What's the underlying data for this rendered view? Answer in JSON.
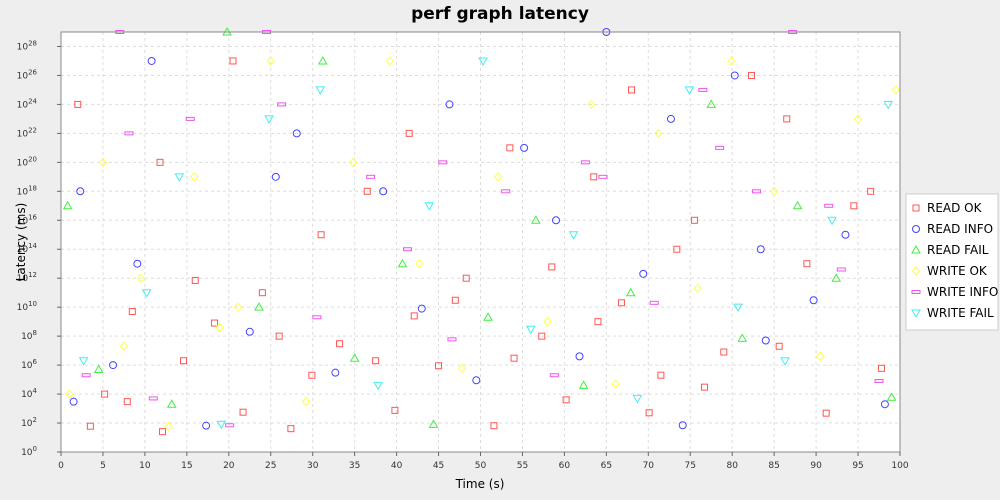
{
  "chart_data": {
    "type": "scatter",
    "title": "perf graph latency",
    "xlabel": "Time (s)",
    "ylabel": "Latency (ms)",
    "x_scale": "linear",
    "y_scale": "log",
    "xlim": [
      0,
      100
    ],
    "ylim": [
      1,
      1e+29
    ],
    "x_ticks": [
      "0",
      "5",
      "10",
      "15",
      "20",
      "25",
      "30",
      "35",
      "40",
      "45",
      "50",
      "55",
      "60",
      "65",
      "70",
      "75",
      "80",
      "85",
      "90",
      "95",
      "100"
    ],
    "y_tick_exponents": [
      "0",
      "2",
      "4",
      "6",
      "8",
      "10",
      "12",
      "14",
      "16",
      "18",
      "20",
      "22",
      "24",
      "26",
      "28"
    ],
    "y_tick_base": "10",
    "grid": true,
    "legend_position": "right",
    "series": [
      {
        "name": "READ OK",
        "marker": "square",
        "color": "#ff5555",
        "points": [
          [
            3.5,
            60.2
          ],
          [
            5.2,
            10000.0
          ],
          [
            7.9,
            3000.0
          ],
          [
            12.1,
            25.4
          ],
          [
            14.6,
            2000000.0
          ],
          [
            18.3,
            800000000.0
          ],
          [
            21.7,
            560.0
          ],
          [
            24.0,
            100000000000.0
          ],
          [
            27.4,
            40.8
          ],
          [
            29.9,
            200000.0
          ],
          [
            33.2,
            30000000.0
          ],
          [
            36.5,
            1e+18
          ],
          [
            39.8,
            750.0
          ],
          [
            42.1,
            2500000000.0
          ],
          [
            45.0,
            900000.0
          ],
          [
            48.3,
            1000000000000.0
          ],
          [
            51.6,
            65.5
          ],
          [
            54.0,
            3000000.0
          ],
          [
            57.3,
            100000000.0
          ],
          [
            60.2,
            4000.0
          ],
          [
            63.5,
            1e+19
          ],
          [
            66.8,
            20000000000.0
          ],
          [
            70.1,
            510.0
          ],
          [
            73.4,
            100000000000000.0
          ],
          [
            76.7,
            30000.0
          ],
          [
            79.0,
            8000000.0
          ],
          [
            82.3,
            1e+26
          ],
          [
            85.6,
            20000000.0
          ],
          [
            88.9,
            10000000000000.0
          ],
          [
            91.2,
            480.0
          ],
          [
            94.5,
            1e+17
          ],
          [
            97.8,
            600000.0
          ],
          [
            2.0,
            1e+24
          ],
          [
            11.8,
            1e+20
          ],
          [
            20.5,
            1e+27
          ],
          [
            31.0,
            1000000000000000.0
          ],
          [
            41.5,
            1e+22
          ],
          [
            53.5,
            1e+21
          ],
          [
            68.0,
            1e+25
          ],
          [
            75.5,
            1e+16
          ],
          [
            86.5,
            1e+23
          ],
          [
            96.5,
            1e+18
          ],
          [
            8.5,
            5000000000.0
          ],
          [
            16.0,
            700000000000.0
          ],
          [
            26.0,
            100000000.0
          ],
          [
            37.5,
            2000000.0
          ],
          [
            47.0,
            30000000000.0
          ],
          [
            58.5,
            6000000000000.0
          ],
          [
            64.0,
            1000000000.0
          ],
          [
            71.5,
            200000.0
          ]
        ]
      },
      {
        "name": "READ INFO",
        "marker": "circle",
        "color": "#4444ff",
        "points": [
          [
            1.5,
            3000.0
          ],
          [
            6.2,
            1000000.0
          ],
          [
            10.8,
            1e+27
          ],
          [
            17.3,
            65.8
          ],
          [
            22.5,
            200000000.0
          ],
          [
            28.1,
            1e+22
          ],
          [
            32.7,
            300000.0
          ],
          [
            38.4,
            1e+18
          ],
          [
            43.0,
            8000000000.0
          ],
          [
            49.5,
            90000.0
          ],
          [
            55.2,
            1e+21
          ],
          [
            61.8,
            4000000.0
          ],
          [
            65.0,
            1e+29
          ],
          [
            69.4,
            2000000000000.0
          ],
          [
            74.1,
            70.2
          ],
          [
            80.3,
            1e+26
          ],
          [
            84.0,
            50000000.0
          ],
          [
            89.7,
            30000000000.0
          ],
          [
            93.5,
            1000000000000000.0
          ],
          [
            98.2,
            2000.0
          ],
          [
            2.3,
            1e+18
          ],
          [
            9.1,
            10000000000000.0
          ],
          [
            25.6,
            1e+19
          ],
          [
            46.3,
            1e+24
          ],
          [
            59.0,
            1e+16
          ],
          [
            72.7,
            1e+23
          ],
          [
            83.4,
            100000000000000.0
          ]
        ]
      },
      {
        "name": "READ FAIL",
        "marker": "triangle-up",
        "color": "#44ee44",
        "points": [
          [
            0.8,
            1e+17
          ],
          [
            4.5,
            500000.0
          ],
          [
            13.2,
            2000.0
          ],
          [
            19.8,
            1e+29
          ],
          [
            23.6,
            10000000000.0
          ],
          [
            31.2,
            1e+27
          ],
          [
            35.0,
            3000000.0
          ],
          [
            40.7,
            10000000000000.0
          ],
          [
            44.4,
            81.0
          ],
          [
            50.9,
            2000000000.0
          ],
          [
            56.6,
            1e+16
          ],
          [
            62.3,
            40000.0
          ],
          [
            67.9,
            100000000000.0
          ],
          [
            77.5,
            1e+24
          ],
          [
            81.2,
            70000000.0
          ],
          [
            87.8,
            1e+17
          ],
          [
            92.4,
            1000000000000.0
          ],
          [
            99.0,
            6000.0
          ]
        ]
      },
      {
        "name": "WRITE OK",
        "marker": "diamond",
        "color": "#ffff44",
        "points": [
          [
            1.0,
            10000.0
          ],
          [
            5.0,
            1e+20
          ],
          [
            7.5,
            20000000.0
          ],
          [
            9.5,
            1000000000000.0
          ],
          [
            12.8,
            60.6
          ],
          [
            15.9,
            1e+19
          ],
          [
            18.9,
            400000000.0
          ],
          [
            21.1,
            10000000000.0
          ],
          [
            25.0,
            1e+27
          ],
          [
            29.2,
            3000.0
          ],
          [
            34.8,
            1e+20
          ],
          [
            39.2,
            1e+27
          ],
          [
            42.7,
            10000000000000.0
          ],
          [
            47.8,
            600000.0
          ],
          [
            52.1,
            1e+19
          ],
          [
            58.0,
            1000000000.0
          ],
          [
            63.2,
            1e+24
          ],
          [
            66.1,
            50000.0
          ],
          [
            71.2,
            1e+22
          ],
          [
            75.9,
            200000000000.0
          ],
          [
            79.9,
            1e+27
          ],
          [
            85.0,
            1e+18
          ],
          [
            90.5,
            4000000.0
          ],
          [
            95.0,
            1e+23
          ],
          [
            99.5,
            1e+25
          ]
        ]
      },
      {
        "name": "WRITE INFO",
        "marker": "bar",
        "color": "#ee55ee",
        "points": [
          [
            3.0,
            200000.0
          ],
          [
            8.1,
            1e+22
          ],
          [
            11.0,
            5000.0
          ],
          [
            15.4,
            1e+23
          ],
          [
            20.1,
            70.0
          ],
          [
            26.3,
            1e+24
          ],
          [
            30.5,
            2000000000.0
          ],
          [
            36.9,
            1e+19
          ],
          [
            41.3,
            100000000000000.0
          ],
          [
            46.6,
            60000000.0
          ],
          [
            53.0,
            1e+18
          ],
          [
            58.8,
            200000.0
          ],
          [
            64.6,
            1e+19
          ],
          [
            70.7,
            20000000000.0
          ],
          [
            76.5,
            1e+25
          ],
          [
            82.9,
            1e+18
          ],
          [
            87.2,
            1e+29
          ],
          [
            93.0,
            4000000000000.0
          ],
          [
            97.5,
            80000.0
          ],
          [
            7.0,
            1e+29
          ],
          [
            24.5,
            1e+29
          ],
          [
            45.5,
            1e+20
          ],
          [
            62.5,
            1e+20
          ],
          [
            78.5,
            1e+21
          ],
          [
            91.5,
            1e+17
          ]
        ]
      },
      {
        "name": "WRITE FAIL",
        "marker": "triangle-down",
        "color": "#44eeee",
        "points": [
          [
            2.7,
            2000000.0
          ],
          [
            10.2,
            100000000000.0
          ],
          [
            14.1,
            1e+19
          ],
          [
            19.1,
            82.0
          ],
          [
            24.8,
            1e+23
          ],
          [
            30.9,
            1e+25
          ],
          [
            37.8,
            40000.0
          ],
          [
            43.9,
            1e+17
          ],
          [
            50.3,
            1e+27
          ],
          [
            56.0,
            300000000.0
          ],
          [
            61.1,
            1000000000000000.0
          ],
          [
            68.7,
            5000.0
          ],
          [
            74.9,
            1e+25
          ],
          [
            80.7,
            10000000000.0
          ],
          [
            86.3,
            2000000.0
          ],
          [
            91.9,
            1e+16
          ],
          [
            98.6,
            1e+24
          ]
        ]
      }
    ]
  }
}
